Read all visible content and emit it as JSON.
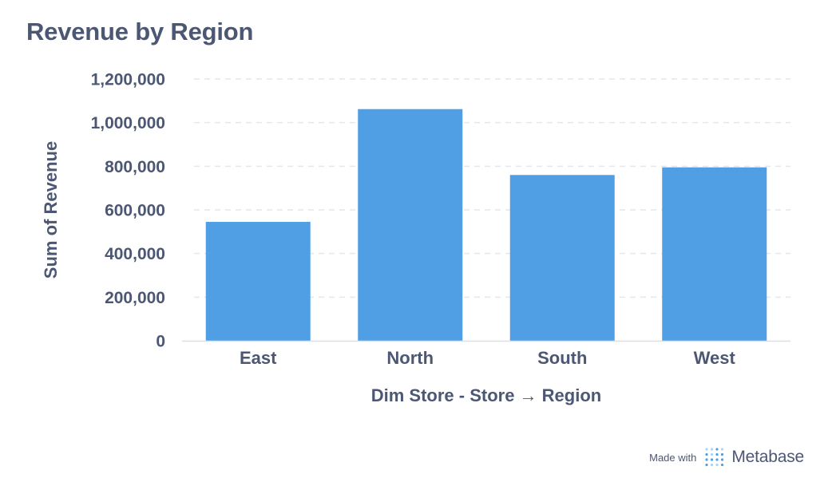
{
  "chart_data": {
    "type": "bar",
    "title": "Revenue by Region",
    "xlabel": "Dim Store - Store → Region",
    "ylabel": "Sum of Revenue",
    "categories": [
      "East",
      "North",
      "South",
      "West"
    ],
    "values": [
      545000,
      1062000,
      760000,
      795000
    ],
    "ylim": [
      0,
      1200000
    ],
    "yticks": [
      0,
      200000,
      400000,
      600000,
      800000,
      1000000,
      1200000
    ],
    "ytick_labels": [
      "0",
      "200,000",
      "400,000",
      "600,000",
      "800,000",
      "1,000,000",
      "1,200,000"
    ],
    "grid": true,
    "legend": "none",
    "colors": {
      "bar": "#509ee3",
      "text": "#4c5773",
      "grid": "#e4e7ec",
      "axis": "#dcdfe6"
    }
  },
  "footer": {
    "made_with": "Made with",
    "brand": "Metabase",
    "logo_icon": "metabase-logo-icon"
  }
}
